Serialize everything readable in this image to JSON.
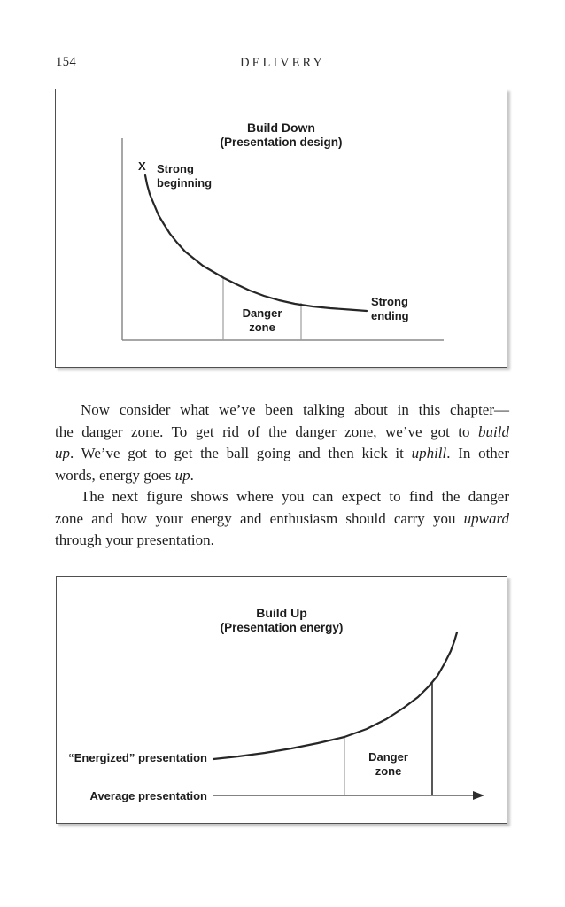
{
  "page": {
    "number": "154",
    "running_head": "DELIVERY"
  },
  "figures": {
    "build_down": {
      "title": "Build Down",
      "subtitle": "(Presentation design)",
      "x_marker": "X",
      "strong_beginning_line1": "Strong",
      "strong_beginning_line2": "beginning",
      "danger_line1": "Danger",
      "danger_line2": "zone",
      "strong_ending_line1": "Strong",
      "strong_ending_line2": "ending"
    },
    "build_up": {
      "title": "Build Up",
      "subtitle": "(Presentation energy)",
      "energized_label": "“Energized” presentation",
      "average_label": "Average presentation",
      "danger_line1": "Danger",
      "danger_line2": "zone"
    }
  },
  "body": {
    "paragraph1_lines": [
      [
        {
          "t": "Now consider what we’ve been talking about in this chapter—"
        }
      ],
      [
        {
          "t": "the danger zone. To get rid of the danger zone, we’ve got to "
        },
        {
          "t": "build",
          "i": true
        }
      ],
      [
        {
          "t": "up",
          "i": true
        },
        {
          "t": ". We’ve got to get the ball going and then kick it "
        },
        {
          "t": "uphill",
          "i": true
        },
        {
          "t": ". In other"
        }
      ],
      [
        {
          "t": "words, energy goes "
        },
        {
          "t": "up",
          "i": true
        },
        {
          "t": "."
        }
      ]
    ],
    "paragraph2_lines": [
      [
        {
          "t": "The next figure shows where you can expect to find the danger"
        }
      ],
      [
        {
          "t": "zone and how your energy and enthusiasm should carry you "
        },
        {
          "t": "upward",
          "i": true
        }
      ],
      [
        {
          "t": "through your presentation."
        }
      ]
    ]
  }
}
